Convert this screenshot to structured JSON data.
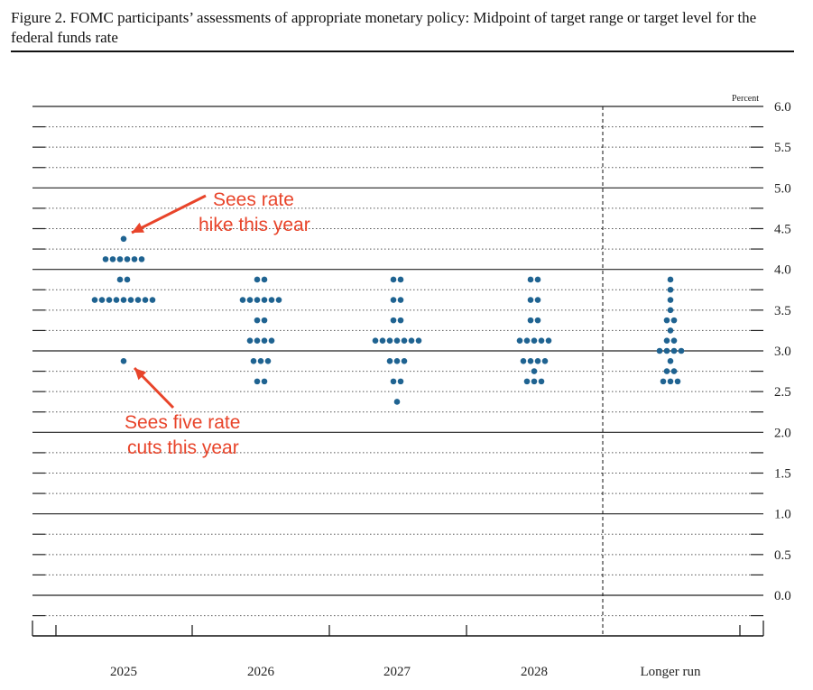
{
  "title": "Figure 2. FOMC participants’ assessments of appropriate monetary policy: Midpoint of target range or target level for the federal funds rate",
  "chart_data": {
    "type": "scatter",
    "subtype": "dot-plot",
    "ylabel": "Percent",
    "ylim": [
      0,
      6.0
    ],
    "yticks": [
      "0.0",
      "0.5",
      "1.0",
      "1.5",
      "2.0",
      "2.5",
      "3.0",
      "3.5",
      "4.0",
      "4.5",
      "5.0",
      "5.5",
      "6.0"
    ],
    "categories": [
      "2025",
      "2026",
      "2027",
      "2028",
      "Longer run"
    ],
    "dot_color": "#1f6391",
    "grid": true,
    "dots": [
      {
        "category": "2025",
        "points": [
          {
            "rate": 4.375,
            "count": 1
          },
          {
            "rate": 4.125,
            "count": 6
          },
          {
            "rate": 3.875,
            "count": 2
          },
          {
            "rate": 3.625,
            "count": 9
          },
          {
            "rate": 2.875,
            "count": 1
          }
        ]
      },
      {
        "category": "2026",
        "points": [
          {
            "rate": 3.875,
            "count": 2
          },
          {
            "rate": 3.625,
            "count": 6
          },
          {
            "rate": 3.375,
            "count": 2
          },
          {
            "rate": 3.125,
            "count": 4
          },
          {
            "rate": 2.875,
            "count": 3
          },
          {
            "rate": 2.625,
            "count": 2
          }
        ]
      },
      {
        "category": "2027",
        "points": [
          {
            "rate": 3.875,
            "count": 2
          },
          {
            "rate": 3.625,
            "count": 2
          },
          {
            "rate": 3.375,
            "count": 2
          },
          {
            "rate": 3.125,
            "count": 7
          },
          {
            "rate": 2.875,
            "count": 3
          },
          {
            "rate": 2.625,
            "count": 2
          },
          {
            "rate": 2.375,
            "count": 1
          }
        ]
      },
      {
        "category": "2028",
        "points": [
          {
            "rate": 3.875,
            "count": 2
          },
          {
            "rate": 3.625,
            "count": 2
          },
          {
            "rate": 3.375,
            "count": 2
          },
          {
            "rate": 3.125,
            "count": 5
          },
          {
            "rate": 2.875,
            "count": 4
          },
          {
            "rate": 2.75,
            "count": 1
          },
          {
            "rate": 2.625,
            "count": 3
          }
        ]
      },
      {
        "category": "Longer run",
        "points": [
          {
            "rate": 3.875,
            "count": 1
          },
          {
            "rate": 3.75,
            "count": 1
          },
          {
            "rate": 3.625,
            "count": 1
          },
          {
            "rate": 3.5,
            "count": 1
          },
          {
            "rate": 3.375,
            "count": 2
          },
          {
            "rate": 3.25,
            "count": 1
          },
          {
            "rate": 3.125,
            "count": 2
          },
          {
            "rate": 3.0,
            "count": 4
          },
          {
            "rate": 2.875,
            "count": 1
          },
          {
            "rate": 2.75,
            "count": 2
          },
          {
            "rate": 2.625,
            "count": 3
          }
        ]
      }
    ],
    "annotations": [
      {
        "lines": [
          "Sees rate",
          "hike this year"
        ],
        "points_to": {
          "category": "2025",
          "rate": 4.375
        }
      },
      {
        "lines": [
          "Sees five rate",
          "cuts this year"
        ],
        "points_to": {
          "category": "2025",
          "rate": 2.875
        }
      }
    ],
    "annotation_color": "#e8442a"
  }
}
